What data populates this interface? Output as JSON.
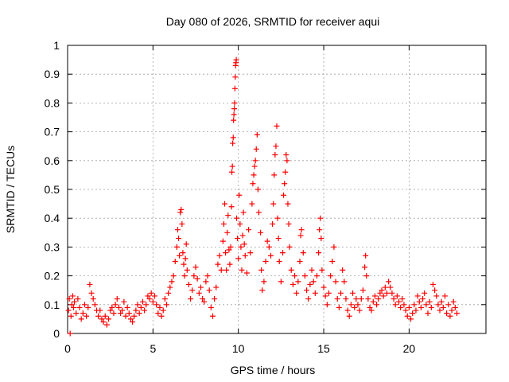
{
  "chart_data": {
    "type": "scatter",
    "title": "Day 080 of 2026, SRMTID for receiver aqui",
    "xlabel": "GPS time / hours",
    "ylabel": "SRMTID / TECUs",
    "xlim": [
      0,
      24.5
    ],
    "ylim": [
      0,
      1
    ],
    "x_ticks": [
      0,
      5,
      10,
      15,
      20
    ],
    "x_tick_labels": [
      "0",
      "5",
      "10",
      "15",
      "20"
    ],
    "y_ticks": [
      0,
      0.1,
      0.2,
      0.3,
      0.4,
      0.5,
      0.6,
      0.7,
      0.8,
      0.9,
      1
    ],
    "y_tick_labels": [
      "0",
      "0.1",
      "0.2",
      "0.3",
      "0.4",
      "0.5",
      "0.6",
      "0.7",
      "0.8",
      "0.9",
      "1"
    ],
    "grid": true,
    "marker": "+",
    "color": "#ff0000",
    "series": [
      {
        "name": "SRMTID",
        "points": [
          [
            0.05,
            0.08
          ],
          [
            0.1,
            0.12
          ],
          [
            0.15,
            0.0
          ],
          [
            0.2,
            0.06
          ],
          [
            0.25,
            0.1
          ],
          [
            0.3,
            0.13
          ],
          [
            0.35,
            0.09
          ],
          [
            0.4,
            0.11
          ],
          [
            0.5,
            0.07
          ],
          [
            0.6,
            0.12
          ],
          [
            0.7,
            0.09
          ],
          [
            0.8,
            0.05
          ],
          [
            0.9,
            0.07
          ],
          [
            1.0,
            0.1
          ],
          [
            1.1,
            0.06
          ],
          [
            1.2,
            0.09
          ],
          [
            1.3,
            0.17
          ],
          [
            1.4,
            0.14
          ],
          [
            1.5,
            0.12
          ],
          [
            1.6,
            0.1
          ],
          [
            1.7,
            0.08
          ],
          [
            1.8,
            0.06
          ],
          [
            1.9,
            0.08
          ],
          [
            2.0,
            0.05
          ],
          [
            2.1,
            0.04
          ],
          [
            2.2,
            0.06
          ],
          [
            2.3,
            0.03
          ],
          [
            2.4,
            0.05
          ],
          [
            2.5,
            0.08
          ],
          [
            2.6,
            0.09
          ],
          [
            2.7,
            0.07
          ],
          [
            2.8,
            0.1
          ],
          [
            2.9,
            0.12
          ],
          [
            3.0,
            0.09
          ],
          [
            3.1,
            0.07
          ],
          [
            3.2,
            0.08
          ],
          [
            3.3,
            0.11
          ],
          [
            3.4,
            0.06
          ],
          [
            3.5,
            0.09
          ],
          [
            3.6,
            0.07
          ],
          [
            3.7,
            0.05
          ],
          [
            3.8,
            0.04
          ],
          [
            3.9,
            0.06
          ],
          [
            4.0,
            0.08
          ],
          [
            4.1,
            0.1
          ],
          [
            4.2,
            0.07
          ],
          [
            4.3,
            0.09
          ],
          [
            4.4,
            0.11
          ],
          [
            4.5,
            0.08
          ],
          [
            4.6,
            0.1
          ],
          [
            4.7,
            0.13
          ],
          [
            4.8,
            0.12
          ],
          [
            4.9,
            0.14
          ],
          [
            5.0,
            0.11
          ],
          [
            5.1,
            0.13
          ],
          [
            5.2,
            0.1
          ],
          [
            5.3,
            0.07
          ],
          [
            5.4,
            0.09
          ],
          [
            5.5,
            0.06
          ],
          [
            5.6,
            0.08
          ],
          [
            5.7,
            0.12
          ],
          [
            5.8,
            0.1
          ],
          [
            5.9,
            0.14
          ],
          [
            6.0,
            0.16
          ],
          [
            6.1,
            0.18
          ],
          [
            6.2,
            0.2
          ],
          [
            6.3,
            0.25
          ],
          [
            6.4,
            0.3
          ],
          [
            6.45,
            0.36
          ],
          [
            6.5,
            0.33
          ],
          [
            6.55,
            0.27
          ],
          [
            6.6,
            0.42
          ],
          [
            6.65,
            0.43
          ],
          [
            6.7,
            0.38
          ],
          [
            6.75,
            0.28
          ],
          [
            6.8,
            0.24
          ],
          [
            6.85,
            0.2
          ],
          [
            6.9,
            0.26
          ],
          [
            6.95,
            0.31
          ],
          [
            7.0,
            0.22
          ],
          [
            7.1,
            0.17
          ],
          [
            7.2,
            0.12
          ],
          [
            7.3,
            0.15
          ],
          [
            7.4,
            0.2
          ],
          [
            7.5,
            0.23
          ],
          [
            7.6,
            0.19
          ],
          [
            7.7,
            0.14
          ],
          [
            7.8,
            0.16
          ],
          [
            7.9,
            0.12
          ],
          [
            8.0,
            0.11
          ],
          [
            8.1,
            0.18
          ],
          [
            8.2,
            0.2
          ],
          [
            8.3,
            0.15
          ],
          [
            8.4,
            0.09
          ],
          [
            8.5,
            0.06
          ],
          [
            8.6,
            0.12
          ],
          [
            8.7,
            0.16
          ],
          [
            8.8,
            0.24
          ],
          [
            8.9,
            0.27
          ],
          [
            9.0,
            0.22
          ],
          [
            9.1,
            0.32
          ],
          [
            9.15,
            0.38
          ],
          [
            9.2,
            0.45
          ],
          [
            9.25,
            0.28
          ],
          [
            9.3,
            0.22
          ],
          [
            9.35,
            0.35
          ],
          [
            9.4,
            0.41
          ],
          [
            9.45,
            0.29
          ],
          [
            9.5,
            0.24
          ],
          [
            9.55,
            0.3
          ],
          [
            9.6,
            0.44
          ],
          [
            9.62,
            0.56
          ],
          [
            9.65,
            0.58
          ],
          [
            9.67,
            0.66
          ],
          [
            9.7,
            0.68
          ],
          [
            9.72,
            0.74
          ],
          [
            9.74,
            0.76
          ],
          [
            9.76,
            0.78
          ],
          [
            9.78,
            0.8
          ],
          [
            9.8,
            0.85
          ],
          [
            9.82,
            0.89
          ],
          [
            9.84,
            0.93
          ],
          [
            9.86,
            0.94
          ],
          [
            9.88,
            0.95
          ],
          [
            9.9,
            0.4
          ],
          [
            9.95,
            0.33
          ],
          [
            10.0,
            0.26
          ],
          [
            10.05,
            0.48
          ],
          [
            10.1,
            0.38
          ],
          [
            10.15,
            0.3
          ],
          [
            10.2,
            0.22
          ],
          [
            10.25,
            0.34
          ],
          [
            10.3,
            0.42
          ],
          [
            10.35,
            0.31
          ],
          [
            10.4,
            0.27
          ],
          [
            10.5,
            0.21
          ],
          [
            10.6,
            0.36
          ],
          [
            10.7,
            0.28
          ],
          [
            10.8,
            0.45
          ],
          [
            10.85,
            0.52
          ],
          [
            10.9,
            0.55
          ],
          [
            10.95,
            0.58
          ],
          [
            11.0,
            0.6
          ],
          [
            11.05,
            0.64
          ],
          [
            11.1,
            0.69
          ],
          [
            11.15,
            0.5
          ],
          [
            11.2,
            0.42
          ],
          [
            11.3,
            0.35
          ],
          [
            11.35,
            0.22
          ],
          [
            11.4,
            0.15
          ],
          [
            11.5,
            0.18
          ],
          [
            11.6,
            0.25
          ],
          [
            11.7,
            0.32
          ],
          [
            11.8,
            0.3
          ],
          [
            11.9,
            0.27
          ],
          [
            12.0,
            0.38
          ],
          [
            12.05,
            0.45
          ],
          [
            12.1,
            0.55
          ],
          [
            12.15,
            0.62
          ],
          [
            12.2,
            0.65
          ],
          [
            12.25,
            0.72
          ],
          [
            12.3,
            0.4
          ],
          [
            12.35,
            0.33
          ],
          [
            12.4,
            0.25
          ],
          [
            12.5,
            0.18
          ],
          [
            12.6,
            0.28
          ],
          [
            12.65,
            0.48
          ],
          [
            12.7,
            0.52
          ],
          [
            12.75,
            0.56
          ],
          [
            12.8,
            0.62
          ],
          [
            12.85,
            0.6
          ],
          [
            12.9,
            0.45
          ],
          [
            12.95,
            0.38
          ],
          [
            13.0,
            0.3
          ],
          [
            13.1,
            0.22
          ],
          [
            13.2,
            0.17
          ],
          [
            13.3,
            0.2
          ],
          [
            13.4,
            0.14
          ],
          [
            13.5,
            0.18
          ],
          [
            13.6,
            0.25
          ],
          [
            13.65,
            0.34
          ],
          [
            13.7,
            0.36
          ],
          [
            13.8,
            0.28
          ],
          [
            13.9,
            0.2
          ],
          [
            14.0,
            0.15
          ],
          [
            14.1,
            0.12
          ],
          [
            14.2,
            0.17
          ],
          [
            14.3,
            0.22
          ],
          [
            14.4,
            0.18
          ],
          [
            14.5,
            0.14
          ],
          [
            14.6,
            0.2
          ],
          [
            14.7,
            0.28
          ],
          [
            14.75,
            0.36
          ],
          [
            14.8,
            0.4
          ],
          [
            14.85,
            0.33
          ],
          [
            14.9,
            0.22
          ],
          [
            15.0,
            0.16
          ],
          [
            15.1,
            0.13
          ],
          [
            15.2,
            0.1
          ],
          [
            15.3,
            0.14
          ],
          [
            15.4,
            0.2
          ],
          [
            15.5,
            0.25
          ],
          [
            15.6,
            0.3
          ],
          [
            15.7,
            0.18
          ],
          [
            15.8,
            0.12
          ],
          [
            15.9,
            0.09
          ],
          [
            16.0,
            0.14
          ],
          [
            16.1,
            0.22
          ],
          [
            16.2,
            0.18
          ],
          [
            16.3,
            0.12
          ],
          [
            16.4,
            0.08
          ],
          [
            16.5,
            0.06
          ],
          [
            16.6,
            0.1
          ],
          [
            16.7,
            0.14
          ],
          [
            16.8,
            0.09
          ],
          [
            16.9,
            0.12
          ],
          [
            17.0,
            0.1
          ],
          [
            17.1,
            0.08
          ],
          [
            17.2,
            0.12
          ],
          [
            17.3,
            0.15
          ],
          [
            17.4,
            0.23
          ],
          [
            17.45,
            0.27
          ],
          [
            17.5,
            0.2
          ],
          [
            17.6,
            0.12
          ],
          [
            17.7,
            0.09
          ],
          [
            17.8,
            0.08
          ],
          [
            17.9,
            0.11
          ],
          [
            18.0,
            0.13
          ],
          [
            18.1,
            0.1
          ],
          [
            18.2,
            0.12
          ],
          [
            18.3,
            0.14
          ],
          [
            18.4,
            0.15
          ],
          [
            18.5,
            0.13
          ],
          [
            18.6,
            0.16
          ],
          [
            18.7,
            0.14
          ],
          [
            18.8,
            0.18
          ],
          [
            18.9,
            0.16
          ],
          [
            19.0,
            0.14
          ],
          [
            19.1,
            0.12
          ],
          [
            19.2,
            0.1
          ],
          [
            19.3,
            0.13
          ],
          [
            19.4,
            0.11
          ],
          [
            19.5,
            0.09
          ],
          [
            19.6,
            0.12
          ],
          [
            19.7,
            0.1
          ],
          [
            19.8,
            0.08
          ],
          [
            19.9,
            0.06
          ],
          [
            20.0,
            0.09
          ],
          [
            20.1,
            0.05
          ],
          [
            20.2,
            0.07
          ],
          [
            20.3,
            0.1
          ],
          [
            20.4,
            0.08
          ],
          [
            20.5,
            0.13
          ],
          [
            20.6,
            0.11
          ],
          [
            20.7,
            0.09
          ],
          [
            20.8,
            0.12
          ],
          [
            20.9,
            0.14
          ],
          [
            21.0,
            0.1
          ],
          [
            21.1,
            0.07
          ],
          [
            21.2,
            0.11
          ],
          [
            21.3,
            0.09
          ],
          [
            21.4,
            0.17
          ],
          [
            21.5,
            0.15
          ],
          [
            21.6,
            0.13
          ],
          [
            21.7,
            0.1
          ],
          [
            21.8,
            0.08
          ],
          [
            21.9,
            0.11
          ],
          [
            22.0,
            0.09
          ],
          [
            22.1,
            0.13
          ],
          [
            22.2,
            0.07
          ],
          [
            22.3,
            0.1
          ],
          [
            22.4,
            0.06
          ],
          [
            22.5,
            0.08
          ],
          [
            22.6,
            0.11
          ],
          [
            22.7,
            0.09
          ],
          [
            22.8,
            0.07
          ]
        ]
      }
    ]
  }
}
